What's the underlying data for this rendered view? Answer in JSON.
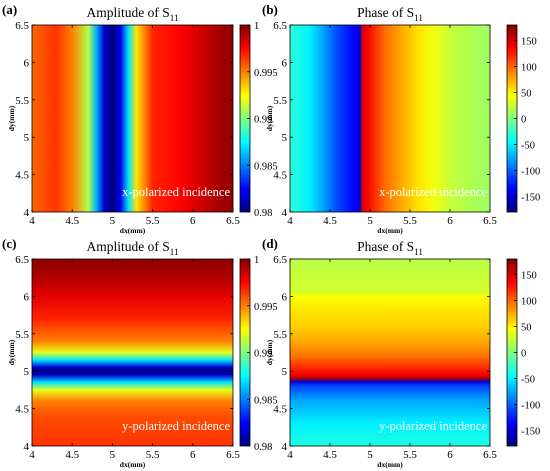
{
  "chart_data": [
    {
      "panel": "(a)",
      "type": "heatmap",
      "title_main": "Amplitude of S",
      "title_sub": "11",
      "xlabel": "dx(mm)",
      "ylabel": "dy(mm)",
      "annotation": "x-polarized incidence",
      "xlim": [
        4,
        6.5
      ],
      "ylim": [
        4,
        6.5
      ],
      "xticks": [
        "4",
        "4.5",
        "5",
        "5.5",
        "6",
        "6.5"
      ],
      "yticks": [
        "4",
        "4.5",
        "5",
        "5.5",
        "6",
        "6.5"
      ],
      "vary": "dx",
      "profile": {
        "coord": [
          4.0,
          4.3,
          4.5,
          4.7,
          4.8,
          4.9,
          5.0,
          5.1,
          5.2,
          5.3,
          5.5,
          5.8,
          6.0,
          6.3,
          6.5
        ],
        "value": [
          0.9955,
          0.9965,
          0.995,
          0.991,
          0.986,
          0.9815,
          0.98,
          0.982,
          0.987,
          0.993,
          0.9968,
          0.9974,
          0.998,
          0.9992,
          0.9997
        ]
      },
      "colorbar": {
        "range": [
          0.98,
          1.0
        ],
        "ticks": [
          "0.98",
          "0.985",
          "0.99",
          "0.995",
          "1"
        ]
      }
    },
    {
      "panel": "(b)",
      "type": "heatmap",
      "title_main": "Phase of S",
      "title_sub": "11",
      "xlabel": "dx(mm)",
      "ylabel": "dy(mm)",
      "annotation": "x-polarized incidence",
      "xlim": [
        4,
        6.5
      ],
      "ylim": [
        4,
        6.5
      ],
      "xticks": [
        "4",
        "4.5",
        "5",
        "5.5",
        "6",
        "6.5"
      ],
      "yticks": [
        "4",
        "4.5",
        "5",
        "5.5",
        "6",
        "6.5"
      ],
      "vary": "dx",
      "profile": {
        "coord": [
          4.0,
          4.25,
          4.4,
          4.6,
          4.8,
          4.88,
          4.9,
          4.95,
          5.05,
          5.2,
          5.4,
          5.6,
          5.8,
          6.0,
          6.3,
          6.5
        ],
        "value": [
          -30,
          -50,
          -75,
          -110,
          -135,
          -155,
          150,
          140,
          120,
          95,
          75,
          55,
          40,
          25,
          15,
          10
        ]
      },
      "colorbar": {
        "range": [
          -180,
          180
        ],
        "ticks": [
          "150",
          "100",
          "50",
          "0",
          "-50",
          "-100",
          "-150"
        ]
      }
    },
    {
      "panel": "(c)",
      "type": "heatmap",
      "title_main": "Amplitude of S",
      "title_sub": "11",
      "xlabel": "dx(mm)",
      "ylabel": "dy(mm)",
      "annotation": "y-polarized incidence",
      "xlim": [
        4,
        6.5
      ],
      "ylim": [
        4,
        6.5
      ],
      "xticks": [
        "4",
        "4.5",
        "5",
        "5.5",
        "6",
        "6.5"
      ],
      "yticks": [
        "4",
        "4.5",
        "5",
        "5.5",
        "6",
        "6.5"
      ],
      "vary": "dy",
      "profile": {
        "coord": [
          4.0,
          4.4,
          4.6,
          4.75,
          4.85,
          4.95,
          5.0,
          5.05,
          5.15,
          5.25,
          5.4,
          5.7,
          6.0,
          6.3,
          6.5
        ],
        "value": [
          0.9965,
          0.996,
          0.995,
          0.992,
          0.987,
          0.9815,
          0.98,
          0.9815,
          0.987,
          0.992,
          0.995,
          0.9968,
          0.998,
          0.9992,
          0.9997
        ]
      },
      "colorbar": {
        "range": [
          0.98,
          1.0
        ],
        "ticks": [
          "0.98",
          "0.985",
          "0.99",
          "0.995",
          "1"
        ]
      }
    },
    {
      "panel": "(d)",
      "type": "heatmap",
      "title_main": "Phase of S",
      "title_sub": "11",
      "xlabel": "dx(mm)",
      "ylabel": "dy(mm)",
      "annotation": "y-polarized incidence",
      "xlim": [
        4,
        6.5
      ],
      "ylim": [
        4,
        6.5
      ],
      "xticks": [
        "4",
        "4.5",
        "5",
        "5.5",
        "6",
        "6.5"
      ],
      "yticks": [
        "4",
        "4.5",
        "5",
        "5.5",
        "6",
        "6.5"
      ],
      "vary": "dy",
      "profile": {
        "coord": [
          4.0,
          4.3,
          4.6,
          4.8,
          4.86,
          4.9,
          4.95,
          5.05,
          5.2,
          5.4,
          5.6,
          5.8,
          6.0,
          6.05,
          6.3,
          6.5
        ],
        "value": [
          -35,
          -50,
          -75,
          -110,
          -150,
          165,
          140,
          120,
          95,
          75,
          62,
          55,
          45,
          30,
          25,
          20
        ]
      },
      "colorbar": {
        "range": [
          -180,
          180
        ],
        "ticks": [
          "150",
          "100",
          "50",
          "0",
          "-50",
          "-100",
          "-150"
        ]
      }
    }
  ]
}
